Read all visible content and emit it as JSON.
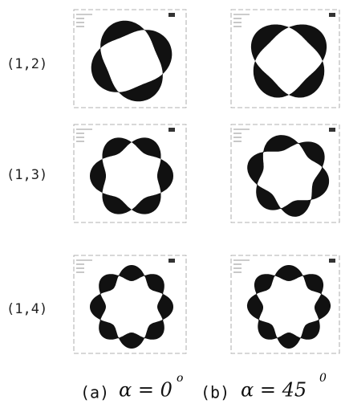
{
  "rows": [
    {
      "label": "(1,2)"
    },
    {
      "label": "(1,3)"
    },
    {
      "label": "(1,4)"
    }
  ],
  "captions": [
    {
      "label": "(a)",
      "formula": "α = 0",
      "superscript": "o"
    },
    {
      "label": "(b)",
      "formula": "α = 45",
      "superscript": "0"
    }
  ]
}
